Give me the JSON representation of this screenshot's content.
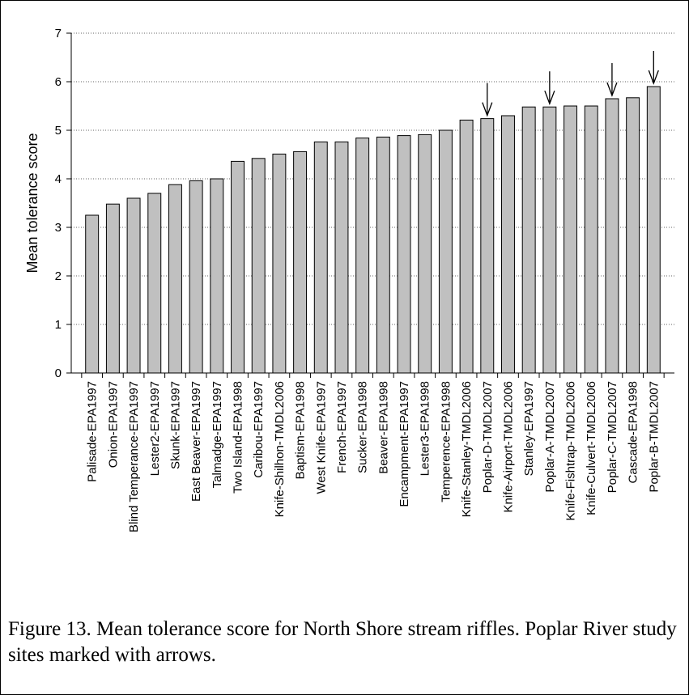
{
  "chart_data": {
    "type": "bar",
    "y_label": "Mean tolerance score",
    "caption": "Figure 13. Mean tolerance score for North Shore stream riffles. Poplar River study sites marked with arrows.",
    "categories": [
      "Palisade-EPA1997",
      "Onion-EPA1997",
      "Blind Temperance-EPA1997",
      "Lester2-EPA1997",
      "Skunk-EPA1997",
      "East Beaver-EPA1997",
      "Talmadge-EPA1997",
      "Two Island-EPA1998",
      "Caribou-EPA1997",
      "Knife-Shilhon-TMDL2006",
      "Baptism-EPA1998",
      "West Knife-EPA1997",
      "French-EPA1997",
      "Sucker-EPA1998",
      "Beaver-EPA1998",
      "Encampment-EPA1997",
      "Lester3-EPA1998",
      "Temperence-EPA1998",
      "Knife-Stanley-TMDL2006",
      "Poplar-D-TMDL2007",
      "Knife-Airport-TMDL2006",
      "Stanley-EPA1997",
      "Poplar-A-TMDL2007",
      "Knife-Fishtrap-TMDL2006",
      "Knife-Culvert-TMDL2006",
      "Poplar-C-TMDL2007",
      "Cascade-EPA1998",
      "Poplar-B-TMDL2007"
    ],
    "values": [
      3.25,
      3.48,
      3.6,
      3.7,
      3.88,
      3.96,
      4.0,
      4.36,
      4.42,
      4.51,
      4.56,
      4.76,
      4.76,
      4.84,
      4.86,
      4.89,
      4.91,
      5.0,
      5.21,
      5.24,
      5.3,
      5.48,
      5.48,
      5.5,
      5.5,
      5.65,
      5.67,
      5.9
    ],
    "color": "#c0c0c0",
    "arrow_indices": [
      19,
      22,
      25,
      27
    ],
    "ylim": [
      0,
      7
    ],
    "yticks": [
      0,
      1,
      2,
      3,
      4,
      5,
      6,
      7
    ],
    "grid": true
  }
}
